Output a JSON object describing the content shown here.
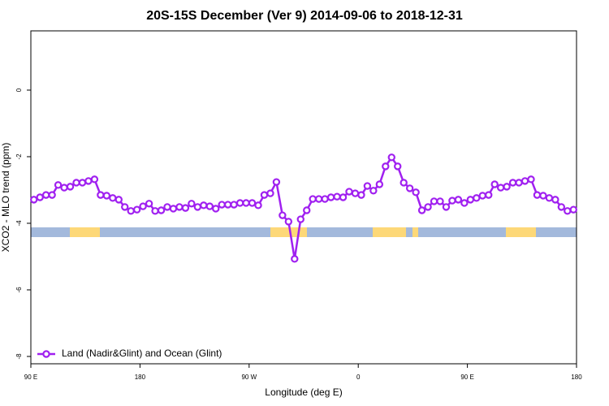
{
  "chart_data": {
    "type": "line",
    "title": "20S-15S December (Ver 9)   2014-09-06 to 2018-12-31",
    "x_label": "Longitude (deg E)",
    "y_label": "XCO2 - MLO trend (ppm)",
    "xlim": [
      90,
      540
    ],
    "ylim": [
      -8.22,
      1.78
    ],
    "xticks": [
      {
        "value": 90,
        "label": "90 E"
      },
      180,
      {
        "value": 270,
        "label": "90 W"
      },
      {
        "value": 360,
        "label": "0"
      },
      {
        "value": 450,
        "label": "90 E"
      },
      {
        "value": 540,
        "label": "180"
      }
    ],
    "yticks": [
      0,
      -2,
      -4,
      -6,
      -8
    ],
    "legend_position": "bottom-left",
    "x": [
      92.5,
      97.5,
      102.5,
      107.5,
      112.5,
      117.5,
      122.5,
      127.5,
      132.5,
      137.5,
      142.5,
      147.5,
      152.5,
      157.5,
      162.5,
      167.5,
      172.5,
      177.5,
      182.5,
      187.5,
      192.5,
      197.5,
      202.5,
      207.5,
      212.5,
      217.5,
      222.5,
      227.5,
      232.5,
      237.5,
      242.5,
      247.5,
      252.5,
      257.5,
      262.5,
      267.5,
      272.5,
      277.5,
      282.5,
      287.5,
      292.5,
      297.5,
      302.5,
      307.5,
      312.5,
      317.5,
      322.5,
      327.5,
      332.5,
      337.5,
      342.5,
      347.5,
      352.5,
      357.5,
      362.5,
      367.5,
      372.5,
      377.5,
      382.5,
      387.5,
      392.5,
      397.5,
      402.5,
      407.5,
      412.5,
      417.5,
      422.5,
      427.5,
      432.5,
      437.5,
      442.5,
      447.5,
      452.5,
      457.5,
      462.5,
      467.5,
      472.5,
      477.5,
      482.5,
      487.5,
      492.5,
      497.5,
      502.5,
      507.5,
      512.5,
      517.5,
      522.5,
      527.5,
      532.5,
      537.5
    ],
    "series": [
      {
        "name": "Land (Nadir&Glint) and Ocean (Glint)",
        "color": "#a020f0",
        "values": [
          -3.29,
          -3.22,
          -3.15,
          -3.15,
          -2.85,
          -2.93,
          -2.9,
          -2.78,
          -2.78,
          -2.73,
          -2.68,
          -3.15,
          -3.17,
          -3.24,
          -3.29,
          -3.51,
          -3.63,
          -3.59,
          -3.49,
          -3.41,
          -3.63,
          -3.61,
          -3.51,
          -3.56,
          -3.51,
          -3.54,
          -3.41,
          -3.51,
          -3.46,
          -3.49,
          -3.56,
          -3.44,
          -3.44,
          -3.44,
          -3.39,
          -3.39,
          -3.39,
          -3.46,
          -3.15,
          -3.1,
          -2.76,
          -3.76,
          -3.95,
          -5.07,
          -3.88,
          -3.61,
          -3.27,
          -3.27,
          -3.27,
          -3.22,
          -3.2,
          -3.22,
          -3.05,
          -3.1,
          -3.15,
          -2.88,
          -3.02,
          -2.83,
          -2.29,
          -2.02,
          -2.29,
          -2.78,
          -2.95,
          -3.07,
          -3.61,
          -3.51,
          -3.34,
          -3.34,
          -3.51,
          -3.32,
          -3.29,
          -3.39,
          -3.29,
          -3.24,
          -3.17,
          -3.15,
          -2.83,
          -2.93,
          -2.9,
          -2.78,
          -2.78,
          -2.73,
          -2.68,
          -3.15,
          -3.17,
          -3.24,
          -3.29,
          -3.51,
          -3.63,
          -3.59
        ]
      }
    ]
  }
}
